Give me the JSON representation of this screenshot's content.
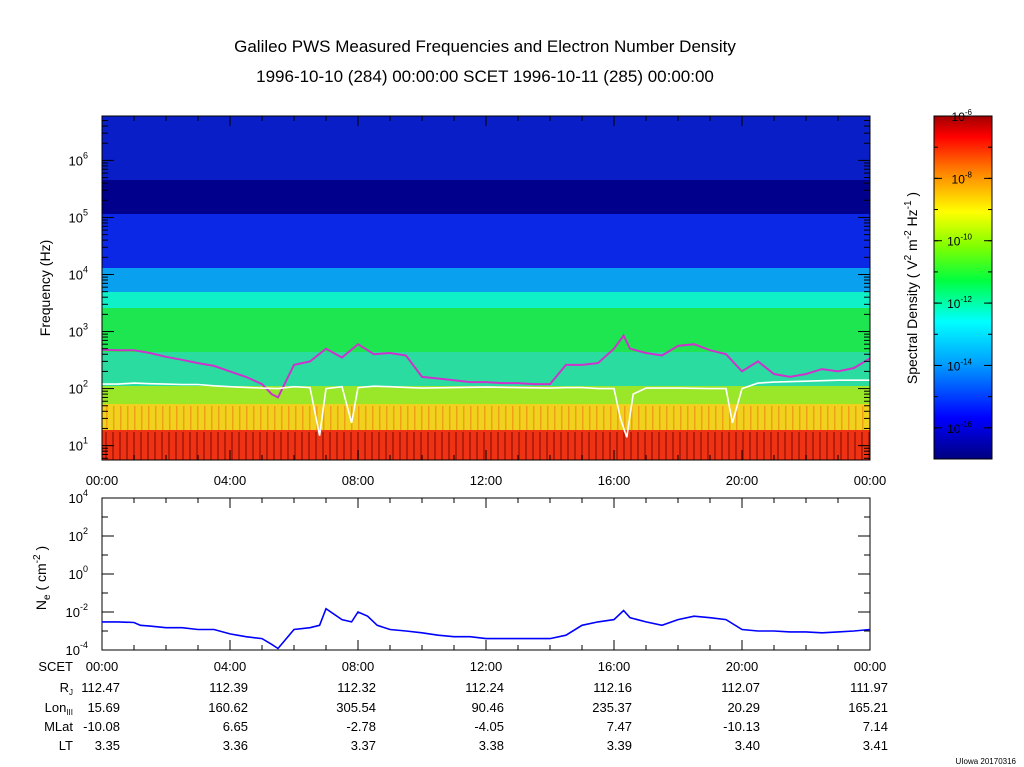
{
  "chart_data": [
    {
      "type": "heatmap",
      "title": "Galileo PWS Measured Frequencies and Electron Number Density",
      "subtitle": "1996-10-10 (284) 00:00:00 SCET 1996-10-11 (285) 00:00:00",
      "ylabel": "Frequency (Hz)",
      "yscale": "log",
      "ylim": [
        5.6,
        6000000
      ],
      "y_ticks": [
        {
          "base": "10",
          "exp": "1",
          "value": 10
        },
        {
          "base": "10",
          "exp": "2",
          "value": 100
        },
        {
          "base": "10",
          "exp": "3",
          "value": 1000
        },
        {
          "base": "10",
          "exp": "4",
          "value": 10000
        },
        {
          "base": "10",
          "exp": "5",
          "value": 100000
        },
        {
          "base": "10",
          "exp": "6",
          "value": 1000000
        }
      ],
      "x_ticks": [
        "00:00",
        "04:00",
        "08:00",
        "12:00",
        "16:00",
        "20:00",
        "00:00"
      ],
      "xlim_hours": [
        0,
        24
      ],
      "colorbar": {
        "label_main": "Spectral Density ( V",
        "label_sup1": "2",
        "label_mid": " m",
        "label_sup2": "-2",
        "label_mid2": " Hz",
        "label_sup3": "-1",
        "label_end": " )",
        "range_log10": [
          -17,
          -6
        ],
        "ticks": [
          {
            "base": "10",
            "exp": "-6",
            "log10": -6
          },
          {
            "base": "10",
            "exp": "-8",
            "log10": -8
          },
          {
            "base": "10",
            "exp": "-10",
            "log10": -10
          },
          {
            "base": "10",
            "exp": "-12",
            "log10": -12
          },
          {
            "base": "10",
            "exp": "-14",
            "log10": -14
          },
          {
            "base": "10",
            "exp": "-16",
            "log10": -16
          }
        ],
        "colors": [
          "#000080",
          "#0000ff",
          "#00a0ff",
          "#00ffff",
          "#00ff40",
          "#80ff00",
          "#ffff00",
          "#ff8000",
          "#ff0000",
          "#a00000"
        ]
      },
      "series": [
        {
          "name": "upper-hybrid-frequency",
          "color": "#cc33cc",
          "hours": [
            0,
            0.5,
            1,
            1.5,
            2,
            2.5,
            3,
            3.5,
            4,
            4.5,
            5,
            5.3,
            5.5,
            6,
            6.5,
            7,
            7.5,
            8,
            8.5,
            9,
            9.5,
            10,
            10.5,
            11,
            11.5,
            12,
            12.5,
            13,
            13.5,
            14,
            14.5,
            15,
            15.5,
            16,
            16.3,
            16.5,
            17,
            17.5,
            18,
            18.5,
            19,
            19.5,
            20,
            20.5,
            21,
            21.5,
            22,
            22.5,
            23,
            23.5,
            24
          ],
          "values": [
            480,
            470,
            470,
            420,
            360,
            320,
            280,
            250,
            200,
            160,
            120,
            80,
            70,
            260,
            300,
            500,
            350,
            600,
            400,
            420,
            380,
            160,
            150,
            140,
            130,
            130,
            125,
            125,
            120,
            120,
            260,
            260,
            280,
            500,
            850,
            500,
            420,
            380,
            560,
            600,
            470,
            400,
            200,
            300,
            180,
            160,
            180,
            220,
            200,
            230,
            340
          ]
        },
        {
          "name": "plasma-frequency",
          "color": "#ffffff",
          "hours": [
            0,
            0.5,
            1,
            1.5,
            2,
            2.5,
            3,
            3.5,
            4,
            4.5,
            5,
            5.5,
            6,
            6.5,
            6.8,
            7,
            7.5,
            7.8,
            8,
            8.5,
            9,
            9.5,
            10,
            11,
            12,
            13,
            14,
            14.5,
            15,
            15.5,
            16,
            16.2,
            16.4,
            16.6,
            17,
            18,
            19,
            19.5,
            19.7,
            20,
            20.5,
            21,
            22,
            23,
            24
          ],
          "values": [
            120,
            120,
            125,
            122,
            120,
            118,
            118,
            112,
            108,
            105,
            102,
            100,
            108,
            104,
            15,
            100,
            108,
            25,
            104,
            110,
            108,
            105,
            102,
            104,
            106,
            104,
            102,
            104,
            104,
            100,
            100,
            30,
            14,
            80,
            102,
            102,
            100,
            100,
            25,
            100,
            125,
            130,
            135,
            140,
            140
          ]
        }
      ]
    },
    {
      "type": "line",
      "ylabel_main": "N",
      "ylabel_sub": "e",
      "ylabel_unit": " ( cm",
      "ylabel_sup": "-2",
      "ylabel_end": " )",
      "yscale": "log",
      "ylim": [
        0.0001,
        10000
      ],
      "y_ticks": [
        {
          "base": "10",
          "exp": "4",
          "value": 10000
        },
        {
          "base": "10",
          "exp": "2",
          "value": 100
        },
        {
          "base": "10",
          "exp": "0",
          "value": 1
        },
        {
          "base": "10",
          "exp": "-2",
          "value": 0.01
        },
        {
          "base": "10",
          "exp": "-4",
          "value": 0.0001
        }
      ],
      "xlim_hours": [
        0,
        24
      ],
      "series": [
        {
          "name": "electron-number-density",
          "color": "#0000ff",
          "hours": [
            0,
            0.5,
            1,
            1.2,
            1.5,
            2,
            2.5,
            3,
            3.5,
            4,
            4.5,
            5,
            5.3,
            5.5,
            6,
            6.5,
            6.8,
            7,
            7.5,
            7.8,
            8,
            8.3,
            8.6,
            9,
            9.5,
            10,
            10.5,
            11,
            11.5,
            12,
            12.5,
            13,
            13.5,
            14,
            14.5,
            15,
            15.5,
            16,
            16.3,
            16.5,
            17,
            17.5,
            18,
            18.5,
            19,
            19.5,
            20,
            20.5,
            21,
            21.5,
            22,
            22.5,
            23,
            23.5,
            24
          ],
          "values": [
            0.003,
            0.003,
            0.0028,
            0.002,
            0.0018,
            0.0015,
            0.0015,
            0.0012,
            0.0012,
            0.0007,
            0.0005,
            0.0004,
            0.0002,
            0.00012,
            0.0012,
            0.0015,
            0.002,
            0.015,
            0.004,
            0.003,
            0.01,
            0.006,
            0.002,
            0.0012,
            0.001,
            0.0008,
            0.0006,
            0.0005,
            0.0005,
            0.0004,
            0.0004,
            0.0004,
            0.0004,
            0.0004,
            0.0006,
            0.002,
            0.003,
            0.004,
            0.012,
            0.005,
            0.003,
            0.002,
            0.004,
            0.006,
            0.005,
            0.004,
            0.0012,
            0.001,
            0.001,
            0.0009,
            0.0009,
            0.0008,
            0.0009,
            0.001,
            0.0012
          ]
        }
      ]
    }
  ],
  "ephemeris": {
    "row_labels": [
      "SCET",
      "R",
      "Lon",
      "MLat",
      "LT"
    ],
    "r_sub": "J",
    "lon_sub": "III",
    "scet": [
      "00:00",
      "04:00",
      "08:00",
      "12:00",
      "16:00",
      "20:00",
      "00:00"
    ],
    "rj": [
      "112.47",
      "112.39",
      "112.32",
      "112.24",
      "112.16",
      "112.07",
      "111.97"
    ],
    "lon": [
      "15.69",
      "160.62",
      "305.54",
      "90.46",
      "235.37",
      "20.29",
      "165.21"
    ],
    "mlat": [
      "-10.08",
      "6.65",
      "-2.78",
      "-4.05",
      "7.47",
      "-10.13",
      "7.14"
    ],
    "lt": [
      "3.35",
      "3.36",
      "3.37",
      "3.38",
      "3.39",
      "3.40",
      "3.41"
    ]
  },
  "credit": "UIowa 20170316"
}
